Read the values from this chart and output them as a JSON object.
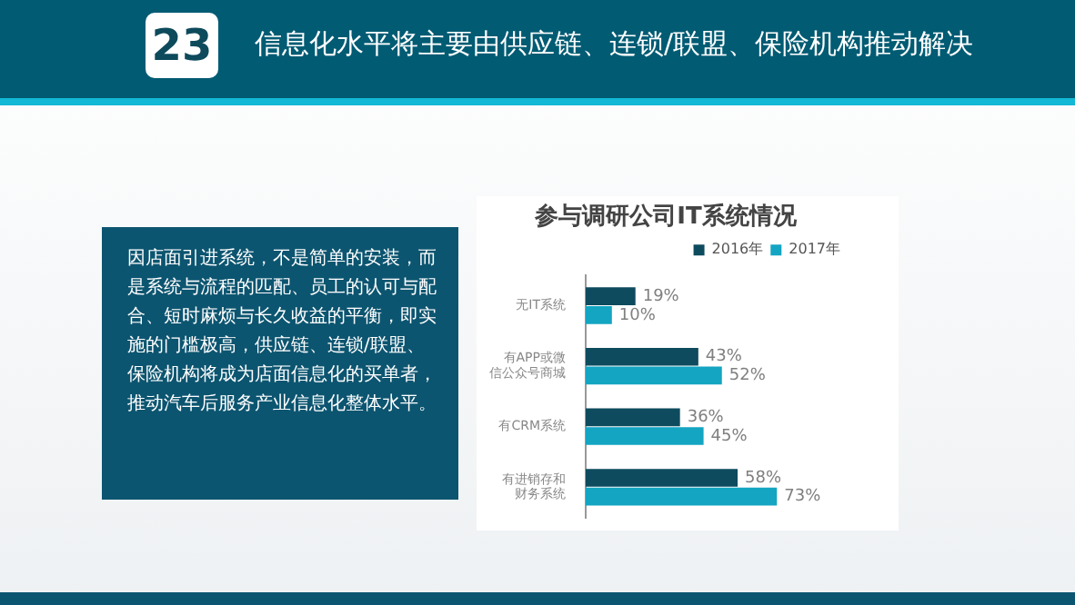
{
  "chart_data": {
    "type": "bar",
    "orientation": "horizontal",
    "title": "参与调研公司IT系统情况",
    "categories": [
      "无IT系统",
      "有APP或微信公众号商城",
      "有CRM系统",
      "有进销存和财务系统"
    ],
    "series": [
      {
        "name": "2016年",
        "color": "#0e4b5e",
        "values": [
          19,
          43,
          36,
          58
        ],
        "value_labels": [
          "19%",
          "43%",
          "36%",
          "58%"
        ]
      },
      {
        "name": "2017年",
        "color": "#14a5c2",
        "values": [
          10,
          52,
          45,
          73
        ],
        "value_labels": [
          "10%",
          "52%",
          "45%",
          "73%"
        ]
      }
    ],
    "legend": "top right",
    "annotations": [
      "23",
      "信息化水平将主要由供应链、连锁/联盟、保险机构推动解决",
      "因店面引进系统，不是简单的安装，而是系统与流程的匹配、员工的认可与配合、短时麻烦与长久收益的平衡，即实施的门槛极高，供应链、连锁/联盟、保险机构将成为店面信息化的买单者，推动汽车后服务产业信息化整体水平。"
    ]
  }
}
